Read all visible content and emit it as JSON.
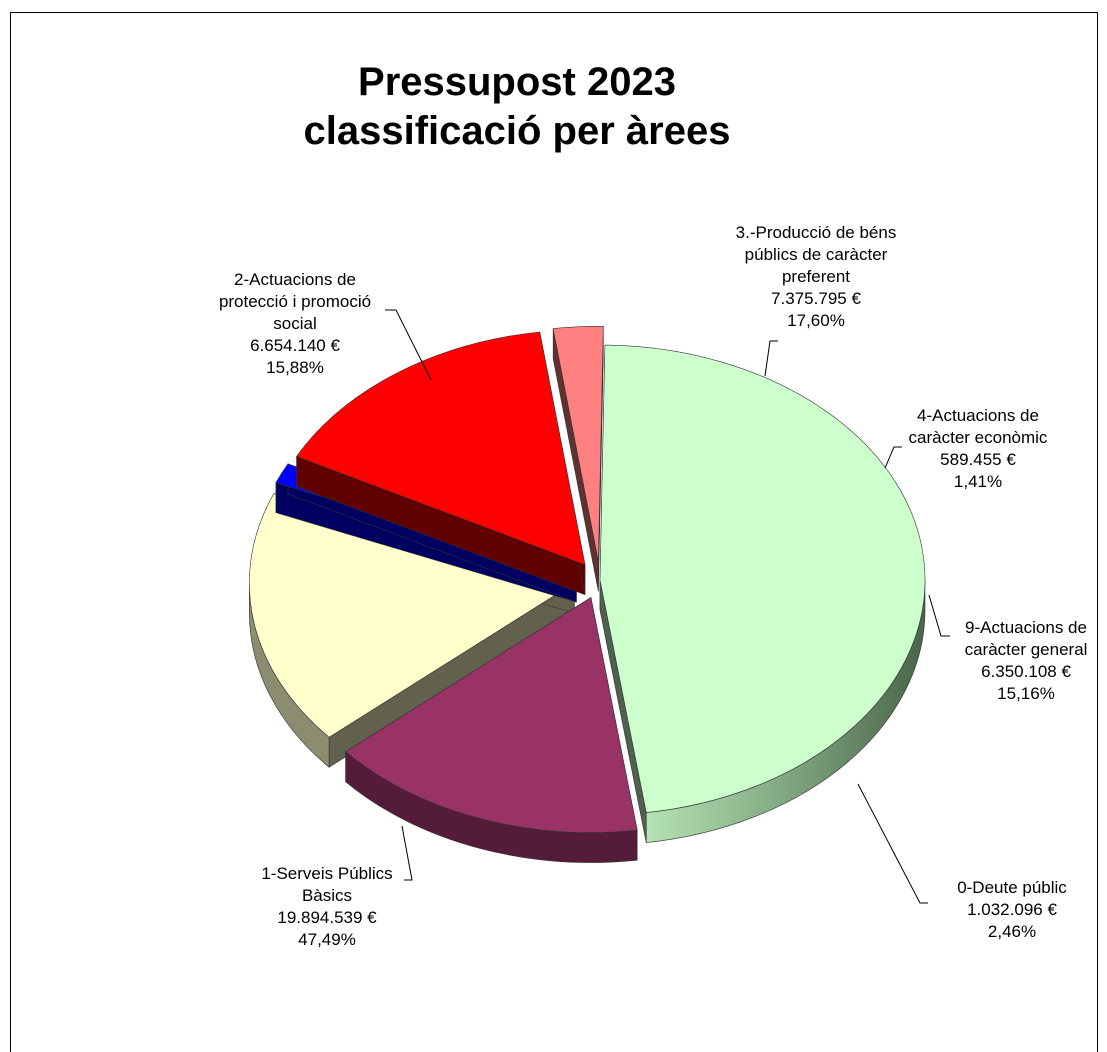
{
  "chart_data": {
    "type": "pie",
    "title": [
      "Pressupost 2023",
      "classificació per àrees"
    ],
    "slices": [
      {
        "name": [
          "0-Deute públic"
        ],
        "value": "1.032.096 €",
        "percent": "2,46%",
        "amount": 1032096,
        "color": "#FF8080"
      },
      {
        "name": [
          "1-Serveis Públics",
          "Bàsics"
        ],
        "value": "19.894.539 €",
        "percent": "47,49%",
        "amount": 19894539,
        "color": "#CCFFCC"
      },
      {
        "name": [
          "2-Actuacions de",
          "protecció i promoció",
          "social"
        ],
        "value": "6.654.140 €",
        "percent": "15,88%",
        "amount": 6654140,
        "color": "#993366"
      },
      {
        "name": [
          "3.-Producció de béns",
          "públics de caràcter",
          "preferent"
        ],
        "value": "7.375.795 €",
        "percent": "17,60%",
        "amount": 7375795,
        "color": "#FFFFCC"
      },
      {
        "name": [
          "4-Actuacions de",
          "caràcter econòmic"
        ],
        "value": "589.455 €",
        "percent": "1,41%",
        "amount": 589455,
        "color": "#0000FF"
      },
      {
        "name": [
          "9-Actuacions de",
          "caràcter general"
        ],
        "value": "6.350.108 €",
        "percent": "15,16%",
        "amount": 6350108,
        "color": "#FF0000"
      }
    ]
  }
}
